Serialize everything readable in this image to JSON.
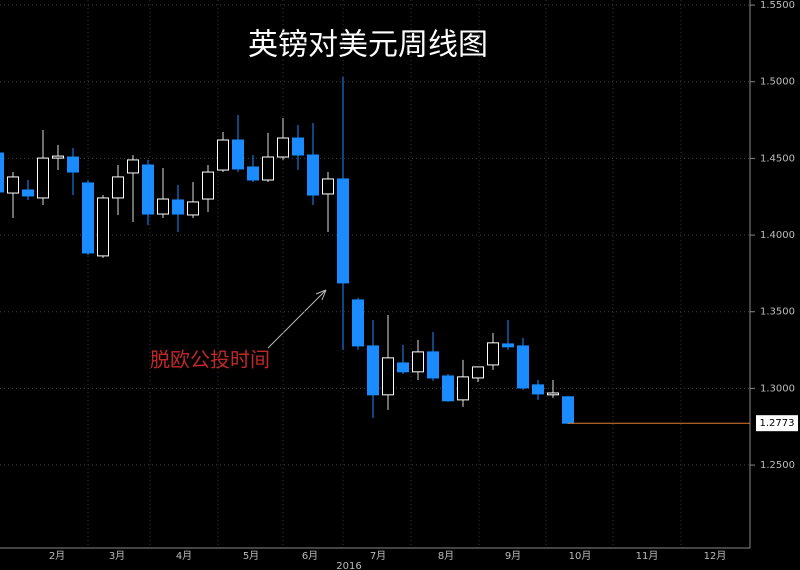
{
  "chart_data": {
    "type": "candlestick",
    "title": "英镑对美元周线图",
    "annotation": "脱欧公投时间",
    "categories": [
      null,
      null,
      null,
      null,
      null,
      null,
      null,
      null,
      null,
      null,
      null,
      null,
      null,
      null,
      null,
      null,
      null,
      null,
      null,
      null,
      null,
      null,
      null,
      null,
      null,
      null,
      null,
      null,
      null,
      null,
      null,
      null,
      null,
      null,
      null,
      null,
      null,
      null,
      null
    ],
    "open": [
      1.4535,
      1.4274,
      1.4294,
      1.4242,
      1.4502,
      1.4509,
      1.434,
      1.3864,
      1.4242,
      1.4405,
      1.4457,
      1.4137,
      1.4229,
      1.4131,
      1.4235,
      1.4424,
      1.462,
      1.4444,
      1.4359,
      1.4509,
      1.4633,
      1.4522,
      1.4268,
      1.4366,
      1.3577,
      1.3277,
      1.2958,
      1.3166,
      1.3108,
      1.3238,
      1.3081,
      1.2925,
      1.3068,
      1.3153,
      1.329,
      1.3277,
      1.3023,
      1.2958,
      1.2945
    ],
    "high": [
      1.4555,
      1.4411,
      1.4359,
      1.4685,
      1.4587,
      1.4568,
      1.4359,
      1.4261,
      1.4457,
      1.4522,
      1.449,
      1.4437,
      1.4327,
      1.4346,
      1.4457,
      1.4672,
      1.4783,
      1.4522,
      1.4666,
      1.4763,
      1.4718,
      1.4731,
      1.4411,
      1.5031,
      1.359,
      1.3446,
      1.3479,
      1.3284,
      1.3316,
      1.3368,
      1.3094,
      1.3186,
      1.314,
      1.3362,
      1.3446,
      1.3329,
      1.3055,
      1.3055,
      1.2951
    ],
    "low": [
      1.4261,
      1.4111,
      1.4229,
      1.4196,
      1.4424,
      1.4261,
      1.387,
      1.3851,
      1.4131,
      1.4085,
      1.4065,
      1.4111,
      1.402,
      1.4111,
      1.415,
      1.4411,
      1.4411,
      1.4346,
      1.4346,
      1.449,
      1.4424,
      1.4196,
      1.402,
      1.3251,
      1.3251,
      1.2808,
      1.286,
      1.3094,
      1.3055,
      1.3049,
      1.2912,
      1.2879,
      1.3042,
      1.3121,
      1.3251,
      1.299,
      1.2925,
      1.2938,
      1.2768
    ],
    "close": [
      1.4281,
      1.4379,
      1.4255,
      1.4502,
      1.4515,
      1.4411,
      1.3883,
      1.4242,
      1.4379,
      1.449,
      1.4137,
      1.4235,
      1.4137,
      1.4216,
      1.4411,
      1.462,
      1.4431,
      1.4359,
      1.4509,
      1.4633,
      1.4522,
      1.4261,
      1.4366,
      1.3688,
      1.3277,
      1.2958,
      1.3199,
      1.3108,
      1.3238,
      1.3068,
      1.2919,
      1.3075,
      1.314,
      1.3297,
      1.3271,
      1.3003,
      1.2964,
      1.297,
      1.2773
    ],
    "up_color": "#ffffff",
    "down_color": "#1a8cff",
    "last_price": 1.2773,
    "last_price_color": "#e07a30",
    "ylim": [
      1.1959,
      1.5533
    ],
    "yticks": [
      {
        "value": 1.25,
        "label": "1.2500"
      },
      {
        "value": 1.3,
        "label": "1.3000"
      },
      {
        "value": 1.35,
        "label": "1.3500"
      },
      {
        "value": 1.4,
        "label": "1.4000"
      },
      {
        "value": 1.45,
        "label": "1.4500"
      },
      {
        "value": 1.5,
        "label": "1.5000"
      },
      {
        "value": 1.55,
        "label": "1.5500"
      }
    ],
    "month_labels": [
      "2月",
      "3月",
      "4月",
      "5月",
      "6月",
      "7月",
      "8月",
      "9月",
      "10月",
      "11月",
      "12月"
    ],
    "year_label": "2016",
    "grid": true
  }
}
